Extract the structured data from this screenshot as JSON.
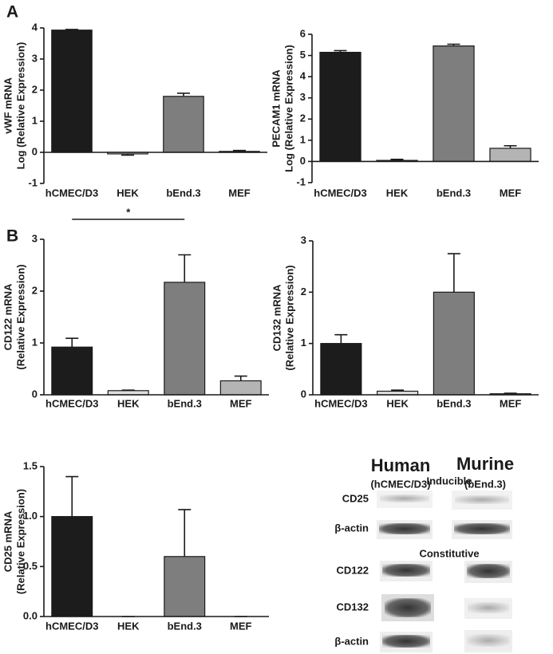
{
  "panels": [
    "A",
    "B"
  ],
  "chart_data": [
    {
      "type": "bar",
      "ylabel": [
        "vWF mRNA",
        "Log (Relative Expression)"
      ],
      "categories": [
        "hCMEC/D3",
        "HEK",
        "bEnd.3",
        "MEF"
      ],
      "values": [
        3.93,
        -0.05,
        1.8,
        0.03
      ],
      "errors": [
        0.02,
        0.04,
        0.1,
        0.03
      ],
      "colors": [
        "#1c1c1c",
        "#dedede",
        "#7e7e7e",
        "#b4b4b4"
      ],
      "ylim": [
        -1,
        4
      ],
      "yticks": [
        -1,
        0,
        1,
        2,
        3,
        4
      ],
      "grid": false
    },
    {
      "type": "bar",
      "ylabel": [
        "PECAM1 mRNA",
        "Log (Relative Expression)"
      ],
      "categories": [
        "hCMEC/D3",
        "HEK",
        "bEnd.3",
        "MEF"
      ],
      "values": [
        5.15,
        0.05,
        5.45,
        0.62
      ],
      "errors": [
        0.08,
        0.05,
        0.08,
        0.12
      ],
      "colors": [
        "#1c1c1c",
        "#dedede",
        "#7e7e7e",
        "#b4b4b4"
      ],
      "ylim": [
        -1,
        6
      ],
      "yticks": [
        -1,
        0,
        1,
        2,
        3,
        4,
        5,
        6
      ],
      "grid": false
    },
    {
      "type": "bar",
      "ylabel": [
        "CD122 mRNA",
        "(Relative Expression)"
      ],
      "categories": [
        "hCMEC/D3",
        "HEK",
        "bEnd.3",
        "MEF"
      ],
      "values": [
        0.92,
        0.08,
        2.17,
        0.27
      ],
      "errors": [
        0.17,
        0.01,
        0.53,
        0.09
      ],
      "colors": [
        "#1c1c1c",
        "#dedede",
        "#7e7e7e",
        "#b4b4b4"
      ],
      "ylim": [
        0,
        3
      ],
      "yticks": [
        0,
        1,
        2,
        3
      ],
      "grid": false,
      "annotation": "*"
    },
    {
      "type": "bar",
      "ylabel": [
        "CD132 mRNA",
        "(Relative Expression)"
      ],
      "categories": [
        "hCMEC/D3",
        "HEK",
        "bEnd.3",
        "MEF"
      ],
      "values": [
        1.0,
        0.07,
        2.0,
        0.02
      ],
      "errors": [
        0.17,
        0.02,
        0.75,
        0.01
      ],
      "colors": [
        "#1c1c1c",
        "#dedede",
        "#7e7e7e",
        "#b4b4b4"
      ],
      "ylim": [
        0,
        3
      ],
      "yticks": [
        0,
        1,
        2,
        3
      ],
      "grid": false
    },
    {
      "type": "bar",
      "ylabel": [
        "CD25 mRNA",
        "(Relative Expression)"
      ],
      "categories": [
        "hCMEC/D3",
        "HEK",
        "bEnd.3",
        "MEF"
      ],
      "values": [
        1.0,
        0,
        0.6,
        0
      ],
      "errors": [
        0.4,
        0,
        0.47,
        0
      ],
      "colors": [
        "#1c1c1c",
        "#dedede",
        "#7e7e7e",
        "#b4b4b4"
      ],
      "ylim": [
        0,
        1.5
      ],
      "yticks": [
        {
          "value": 0,
          "label": "0.0"
        },
        {
          "value": 0.5,
          "label": "0.5"
        },
        {
          "value": 1,
          "label": "1.0"
        },
        {
          "value": 1.5,
          "label": "1.5"
        }
      ],
      "grid": false
    }
  ],
  "blot": {
    "human": "Human",
    "human_line": "(hCMEC/D3)",
    "murine": "Murine",
    "murine_line": "(bEnd.3)",
    "inducible": "Inducible",
    "constitutive": "Constitutive",
    "rows": [
      "CD25",
      "β-actin",
      "CD122",
      "CD132",
      "β-actin"
    ]
  }
}
